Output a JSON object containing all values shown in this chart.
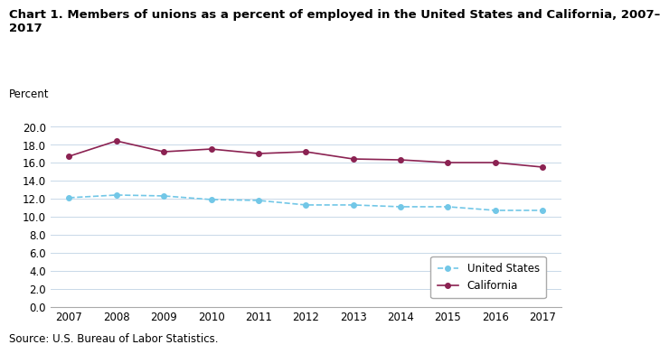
{
  "title_line1": "Chart 1. Members of unions as a percent of employed in the United States and California, 2007–",
  "title_line2": "2017",
  "ylabel": "Percent",
  "source": "Source: U.S. Bureau of Labor Statistics.",
  "years": [
    2007,
    2008,
    2009,
    2010,
    2011,
    2012,
    2013,
    2014,
    2015,
    2016,
    2017
  ],
  "us_values": [
    12.1,
    12.4,
    12.3,
    11.9,
    11.8,
    11.3,
    11.3,
    11.1,
    11.1,
    10.7,
    10.7
  ],
  "ca_values": [
    16.7,
    18.4,
    17.2,
    17.5,
    17.0,
    17.2,
    16.4,
    16.3,
    16.0,
    16.0,
    15.5
  ],
  "us_color": "#72C7E7",
  "ca_color": "#8B2252",
  "us_label": "United States",
  "ca_label": "California",
  "ylim": [
    0.0,
    20.0
  ],
  "yticks": [
    0.0,
    2.0,
    4.0,
    6.0,
    8.0,
    10.0,
    12.0,
    14.0,
    16.0,
    18.0,
    20.0
  ],
  "background_color": "#ffffff",
  "grid_color": "#c8d8e8",
  "title_fontsize": 9.5,
  "axis_label_fontsize": 8.5,
  "tick_fontsize": 8.5,
  "legend_fontsize": 8.5,
  "source_fontsize": 8.5
}
